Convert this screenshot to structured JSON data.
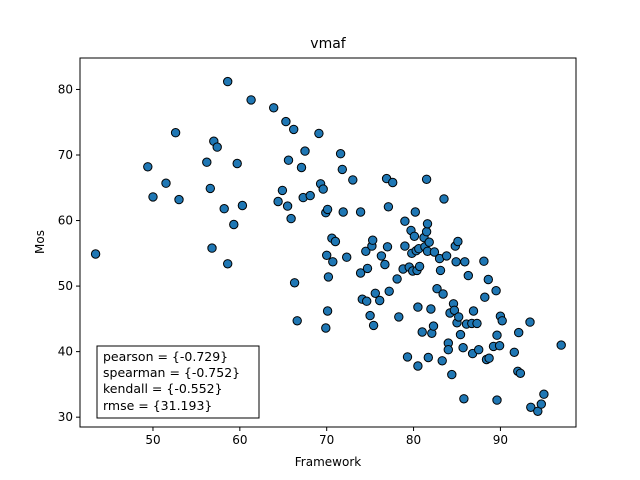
{
  "chart_data": {
    "type": "scatter",
    "title": "vmaf",
    "xlabel": "Framework",
    "ylabel": "Mos",
    "xlim": [
      41.6,
      98.7
    ],
    "ylim": [
      28.5,
      84.8
    ],
    "xticks": [
      50,
      60,
      70,
      80,
      90
    ],
    "yticks": [
      30,
      40,
      50,
      60,
      70,
      80
    ],
    "grid": false,
    "marker_color": "#1f77b4",
    "marker_edge_color": "#000000",
    "annotation_lines": [
      "pearson = {-0.729}",
      "spearman = {-0.752}",
      "kendall = {-0.552}",
      "rmse = {31.193}"
    ],
    "annotation_position": "bottom-left",
    "points": [
      [
        43.4,
        54.9
      ],
      [
        49.4,
        68.2
      ],
      [
        50.0,
        63.6
      ],
      [
        51.5,
        65.7
      ],
      [
        52.6,
        73.4
      ],
      [
        53.0,
        63.2
      ],
      [
        56.2,
        68.9
      ],
      [
        56.6,
        64.9
      ],
      [
        57.0,
        72.1
      ],
      [
        57.4,
        71.2
      ],
      [
        56.8,
        55.8
      ],
      [
        58.2,
        61.8
      ],
      [
        58.6,
        81.2
      ],
      [
        58.6,
        53.4
      ],
      [
        59.3,
        59.4
      ],
      [
        59.7,
        68.7
      ],
      [
        60.3,
        62.3
      ],
      [
        61.3,
        78.4
      ],
      [
        63.9,
        77.2
      ],
      [
        64.4,
        62.9
      ],
      [
        64.9,
        64.6
      ],
      [
        65.3,
        75.1
      ],
      [
        65.5,
        62.2
      ],
      [
        65.6,
        69.2
      ],
      [
        65.9,
        60.3
      ],
      [
        66.2,
        73.9
      ],
      [
        66.3,
        50.5
      ],
      [
        66.6,
        44.7
      ],
      [
        67.1,
        68.1
      ],
      [
        67.3,
        63.5
      ],
      [
        67.5,
        70.6
      ],
      [
        68.1,
        63.8
      ],
      [
        69.1,
        73.3
      ],
      [
        69.3,
        65.6
      ],
      [
        69.6,
        64.8
      ],
      [
        69.9,
        61.2
      ],
      [
        70.1,
        61.7
      ],
      [
        70.0,
        54.7
      ],
      [
        70.2,
        51.4
      ],
      [
        70.1,
        46.2
      ],
      [
        69.9,
        43.6
      ],
      [
        70.6,
        57.3
      ],
      [
        70.7,
        53.7
      ],
      [
        71.0,
        56.8
      ],
      [
        71.6,
        70.2
      ],
      [
        71.8,
        67.8
      ],
      [
        71.9,
        61.3
      ],
      [
        72.3,
        54.4
      ],
      [
        73.0,
        66.2
      ],
      [
        73.9,
        61.3
      ],
      [
        73.9,
        52.0
      ],
      [
        74.1,
        48.0
      ],
      [
        74.5,
        55.3
      ],
      [
        74.6,
        47.7
      ],
      [
        74.7,
        52.7
      ],
      [
        75.0,
        45.5
      ],
      [
        75.2,
        56.1
      ],
      [
        75.3,
        57.0
      ],
      [
        75.4,
        44.0
      ],
      [
        75.6,
        48.9
      ],
      [
        76.1,
        47.8
      ],
      [
        76.3,
        54.6
      ],
      [
        76.7,
        53.3
      ],
      [
        76.9,
        66.4
      ],
      [
        77.0,
        56.0
      ],
      [
        77.1,
        62.1
      ],
      [
        77.2,
        49.2
      ],
      [
        77.6,
        65.8
      ],
      [
        78.1,
        51.1
      ],
      [
        78.3,
        45.3
      ],
      [
        78.8,
        52.6
      ],
      [
        79.0,
        59.9
      ],
      [
        79.0,
        56.1
      ],
      [
        79.3,
        39.2
      ],
      [
        79.5,
        52.9
      ],
      [
        79.7,
        58.5
      ],
      [
        79.8,
        55.0
      ],
      [
        79.9,
        52.3
      ],
      [
        80.1,
        57.6
      ],
      [
        80.2,
        61.3
      ],
      [
        80.3,
        55.4
      ],
      [
        80.4,
        52.4
      ],
      [
        80.5,
        46.8
      ],
      [
        80.6,
        55.7
      ],
      [
        80.7,
        53.0
      ],
      [
        80.5,
        37.8
      ],
      [
        81.0,
        43.0
      ],
      [
        81.2,
        57.4
      ],
      [
        81.3,
        56.0
      ],
      [
        81.5,
        66.3
      ],
      [
        81.5,
        58.3
      ],
      [
        81.6,
        59.5
      ],
      [
        81.6,
        55.3
      ],
      [
        81.7,
        39.1
      ],
      [
        81.8,
        56.7
      ],
      [
        82.0,
        46.5
      ],
      [
        82.1,
        42.8
      ],
      [
        82.3,
        43.9
      ],
      [
        82.4,
        55.2
      ],
      [
        82.7,
        49.6
      ],
      [
        83.0,
        54.2
      ],
      [
        83.1,
        52.4
      ],
      [
        83.3,
        38.6
      ],
      [
        83.5,
        63.3
      ],
      [
        83.4,
        48.8
      ],
      [
        83.8,
        54.6
      ],
      [
        84.0,
        41.3
      ],
      [
        84.0,
        40.3
      ],
      [
        84.2,
        45.9
      ],
      [
        84.4,
        36.5
      ],
      [
        84.6,
        47.3
      ],
      [
        84.7,
        46.3
      ],
      [
        84.8,
        56.1
      ],
      [
        84.9,
        53.7
      ],
      [
        85.0,
        44.4
      ],
      [
        85.1,
        56.8
      ],
      [
        85.2,
        45.3
      ],
      [
        85.4,
        42.6
      ],
      [
        85.7,
        40.6
      ],
      [
        85.8,
        32.8
      ],
      [
        85.9,
        53.7
      ],
      [
        86.1,
        44.2
      ],
      [
        86.3,
        51.6
      ],
      [
        86.7,
        44.3
      ],
      [
        86.8,
        39.7
      ],
      [
        86.9,
        46.2
      ],
      [
        87.3,
        44.3
      ],
      [
        87.5,
        40.3
      ],
      [
        88.1,
        53.8
      ],
      [
        88.2,
        48.3
      ],
      [
        88.4,
        38.8
      ],
      [
        88.6,
        51.0
      ],
      [
        88.7,
        39.0
      ],
      [
        89.2,
        40.8
      ],
      [
        89.5,
        49.3
      ],
      [
        89.6,
        32.6
      ],
      [
        89.6,
        42.5
      ],
      [
        89.9,
        40.9
      ],
      [
        90.0,
        45.4
      ],
      [
        90.2,
        44.7
      ],
      [
        91.6,
        39.9
      ],
      [
        92.0,
        37.0
      ],
      [
        92.1,
        42.9
      ],
      [
        92.3,
        36.7
      ],
      [
        93.4,
        44.5
      ],
      [
        93.5,
        31.5
      ],
      [
        94.3,
        30.9
      ],
      [
        94.7,
        32.0
      ],
      [
        95.0,
        33.5
      ],
      [
        97.0,
        41.0
      ]
    ]
  }
}
